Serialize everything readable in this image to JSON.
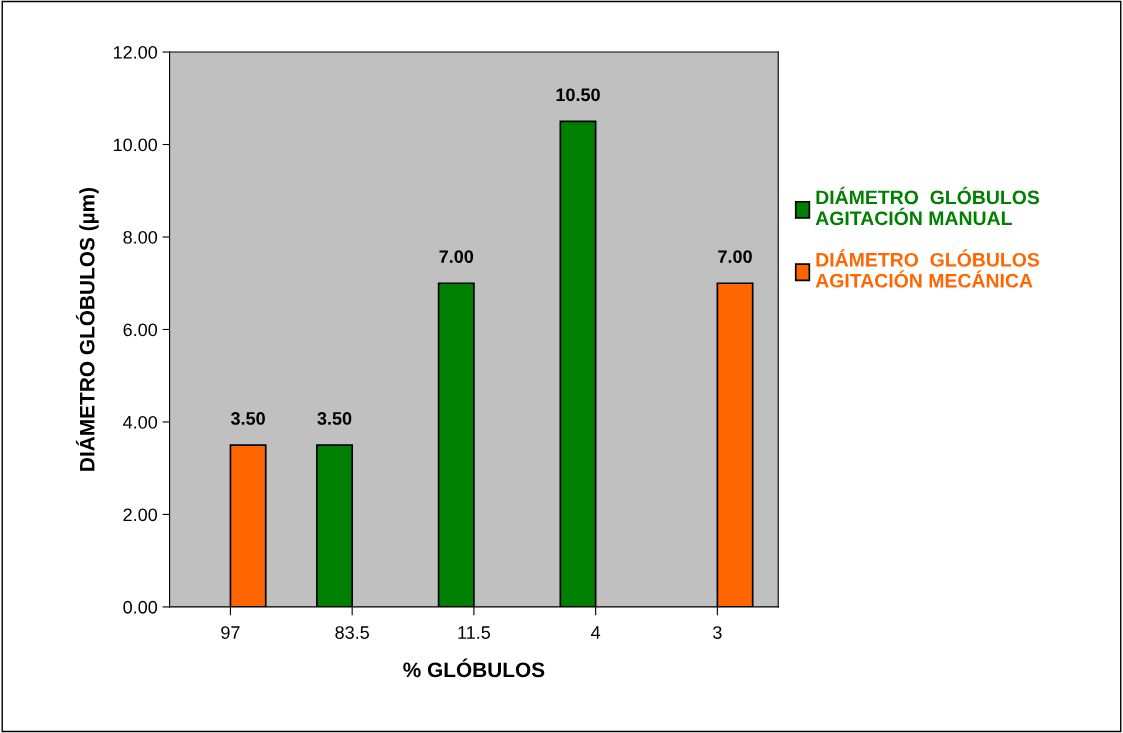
{
  "chart_data": {
    "type": "bar",
    "xlabel": "% GLÓBULOS",
    "ylabel": "DIÁMETRO GLÓBULOS (µm)",
    "categories": [
      "97",
      "83.5",
      "11.5",
      "4",
      "3"
    ],
    "series": [
      {
        "name": "DIÁMETRO  GLÓBULOS\nAGITACIÓN MANUAL",
        "color": "#008000",
        "values": [
          null,
          3.5,
          7,
          10.5,
          null
        ],
        "value_labels": [
          null,
          "3.50",
          "7.00",
          "10.50",
          null
        ]
      },
      {
        "name": "DIÁMETRO  GLÓBULOS\nAGITACIÓN MECÁNICA",
        "color": "#ff6600",
        "values": [
          3.5,
          null,
          null,
          null,
          7
        ],
        "value_labels": [
          "3.50",
          null,
          null,
          null,
          "7.00"
        ]
      }
    ],
    "ylim": [
      0,
      12
    ],
    "yticks": [
      {
        "value": 0,
        "label": "0.00"
      },
      {
        "value": 2,
        "label": "2.00"
      },
      {
        "value": 4,
        "label": "4.00"
      },
      {
        "value": 6,
        "label": "6.00"
      },
      {
        "value": 8,
        "label": "8.00"
      },
      {
        "value": 10,
        "label": "10.00"
      },
      {
        "value": 12,
        "label": "12.00"
      }
    ],
    "grid": false,
    "legend": "right"
  }
}
